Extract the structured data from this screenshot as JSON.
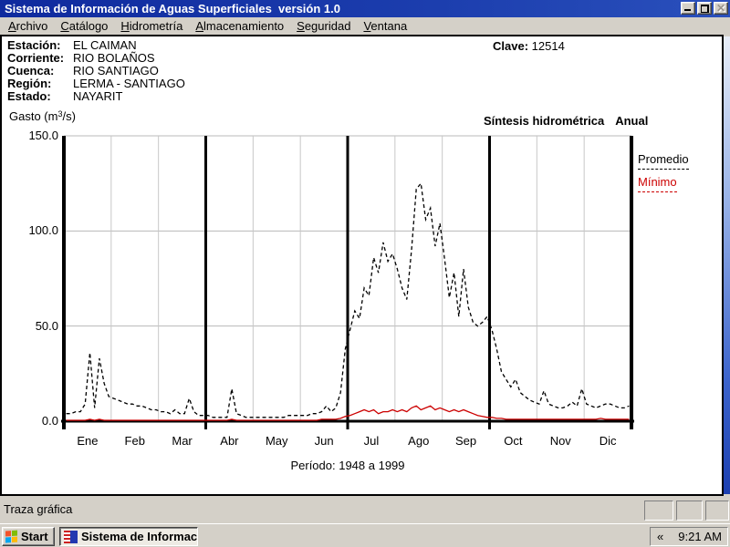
{
  "window": {
    "title": "Sistema de Información de Aguas Superficiales  versión 1.0",
    "controls": {
      "minimize": "minimize",
      "restore": "restore",
      "close": "close (disabled)"
    }
  },
  "menu": {
    "items": [
      {
        "label": "Archivo"
      },
      {
        "label": "Catálogo"
      },
      {
        "label": "Hidrometría"
      },
      {
        "label": "Almacenamiento"
      },
      {
        "label": "Seguridad"
      },
      {
        "label": "Ventana"
      }
    ]
  },
  "station": {
    "rows": [
      {
        "label": "Estación:",
        "value": "EL CAIMAN"
      },
      {
        "label": "Corriente:",
        "value": "RIO BOLAÑOS"
      },
      {
        "label": "Cuenca:",
        "value": "RIO SANTIAGO"
      },
      {
        "label": "Región:",
        "value": "LERMA - SANTIAGO"
      },
      {
        "label": "Estado:",
        "value": "NAYARIT"
      }
    ],
    "clave_label": "Clave:",
    "clave_value": "12514"
  },
  "chart": {
    "gasto": {
      "prefix": "Gasto (m",
      "sup": "3",
      "suffix": "/s)"
    },
    "subtitle": "Síntesis hidrométrica",
    "mode": "Anual",
    "period": "Período: 1948 a 1999"
  },
  "chart_data": {
    "type": "line",
    "title": "Síntesis hidrométrica Anual",
    "ylabel": "Gasto (m³/s)",
    "xlabel": "",
    "x_categories": [
      "Ene",
      "Feb",
      "Mar",
      "Abr",
      "May",
      "Jun",
      "Jul",
      "Ago",
      "Sep",
      "Oct",
      "Nov",
      "Dic"
    ],
    "ylim": [
      0,
      150
    ],
    "yticks": [
      0,
      50,
      100,
      150
    ],
    "ytick_labels": [
      "0.0",
      "50.0",
      "100.0",
      "150.0"
    ],
    "grid": "gray gridline at each month boundary and each y tick; heavy black rules at quarter boundaries",
    "heavy_month_boundaries": [
      0,
      3,
      6,
      9,
      12
    ],
    "legend_position": "right",
    "period": "Período: 1948 a 1999",
    "samples_per_month": 10,
    "series": [
      {
        "name": "Promedio",
        "color": "#000000",
        "style": "dashed",
        "values": [
          4,
          4,
          5,
          5,
          9,
          36,
          7,
          33,
          20,
          13,
          12,
          11,
          10,
          9,
          9,
          8,
          8,
          7,
          6,
          6,
          5,
          5,
          4,
          6,
          4,
          4,
          12,
          5,
          3,
          3,
          3,
          2,
          2,
          2,
          2,
          17,
          4,
          3,
          2,
          2,
          2,
          2,
          2,
          2,
          2,
          2,
          2,
          3,
          3,
          3,
          3,
          3,
          4,
          4,
          5,
          8,
          5,
          7,
          15,
          38,
          48,
          58,
          54,
          70,
          66,
          86,
          78,
          94,
          84,
          88,
          80,
          70,
          64,
          90,
          122,
          125,
          106,
          112,
          92,
          104,
          85,
          65,
          78,
          55,
          80,
          60,
          52,
          50,
          52,
          55,
          48,
          38,
          26,
          22,
          18,
          22,
          15,
          13,
          11,
          10,
          9,
          16,
          9,
          8,
          7,
          7,
          8,
          10,
          8,
          17,
          9,
          8,
          7,
          8,
          9,
          9,
          8,
          7,
          7,
          8
        ]
      },
      {
        "name": "Mínimo",
        "color": "#cc0000",
        "style": "solid",
        "values": [
          0.5,
          0.5,
          0.5,
          0.5,
          0.5,
          1,
          0.5,
          1,
          0.5,
          0.5,
          0.5,
          0.5,
          0.5,
          0.5,
          0.5,
          0.5,
          0.5,
          0.5,
          0.5,
          0.5,
          0.5,
          0.5,
          0.5,
          0.5,
          0.5,
          0.5,
          0.5,
          0.5,
          0.5,
          0.5,
          0.5,
          0.5,
          0.5,
          0.5,
          0.5,
          1,
          0.5,
          0.5,
          0.5,
          0.5,
          0.5,
          0.5,
          0.5,
          0.5,
          0.5,
          0.5,
          0.5,
          0.5,
          0.5,
          0.5,
          0.5,
          0.5,
          0.5,
          0.5,
          1,
          1,
          1,
          1,
          1.5,
          2.5,
          3,
          4,
          5,
          6,
          5,
          6,
          4,
          5,
          5,
          6,
          5,
          6,
          5,
          7,
          8,
          6,
          7,
          8,
          6,
          7,
          6,
          5,
          6,
          5,
          6,
          5,
          4,
          3,
          2.5,
          2,
          2,
          1.5,
          1.5,
          1,
          1,
          1,
          1,
          1,
          1,
          1,
          1,
          1,
          1,
          1,
          1,
          1,
          1,
          1,
          1,
          1,
          1,
          1,
          1,
          1.5,
          1,
          1,
          1,
          1,
          1,
          1
        ]
      }
    ]
  },
  "status_bar": {
    "text": "Traza gráfica"
  },
  "taskbar": {
    "start_label": "Start",
    "task_label": "Sistema de Informaci...",
    "tray_chevron": "«",
    "clock": "9:21 AM"
  }
}
